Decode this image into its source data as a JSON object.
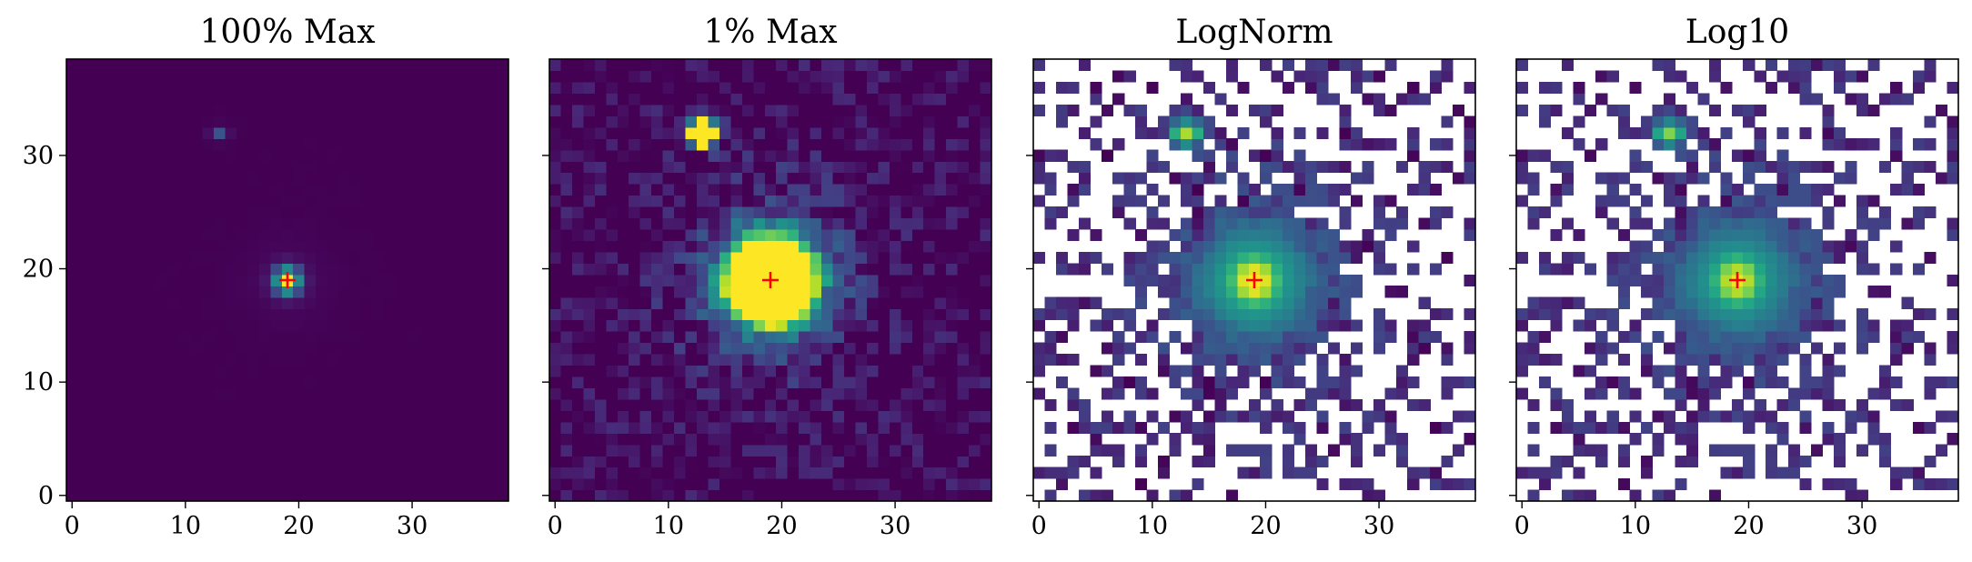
{
  "chart_data": [
    {
      "type": "heatmap",
      "title": "100% Max",
      "norm": "linear-full",
      "cmap": "viridis",
      "x": [
        0,
        10,
        20,
        30
      ],
      "y": [
        0,
        10,
        20,
        30
      ],
      "grid_size": 39,
      "marker": {
        "x": 19,
        "y": 19,
        "symbol": "+",
        "color": "#ff0000"
      },
      "peak": {
        "x": 19,
        "y": 19
      },
      "secondary_source": {
        "x": 13,
        "y": 32
      },
      "background_nan": false,
      "shared_y": false
    },
    {
      "type": "heatmap",
      "title": "1% Max",
      "norm": "linear-clipped-1pct",
      "cmap": "viridis",
      "x": [
        0,
        10,
        20,
        30
      ],
      "y": [
        0,
        10,
        20,
        30
      ],
      "grid_size": 39,
      "marker": {
        "x": 19,
        "y": 19,
        "symbol": "+",
        "color": "#ff0000"
      },
      "peak": {
        "x": 19,
        "y": 19
      },
      "secondary_source": {
        "x": 13,
        "y": 32
      },
      "background_nan": false,
      "shared_y": true
    },
    {
      "type": "heatmap",
      "title": "LogNorm",
      "norm": "log",
      "cmap": "viridis",
      "x": [
        0,
        10,
        20,
        30
      ],
      "y": [
        0,
        10,
        20,
        30
      ],
      "grid_size": 39,
      "marker": {
        "x": 19,
        "y": 19,
        "symbol": "+",
        "color": "#ff0000"
      },
      "peak": {
        "x": 19,
        "y": 19
      },
      "secondary_source": {
        "x": 13,
        "y": 32
      },
      "background_nan": true,
      "shared_y": true
    },
    {
      "type": "heatmap",
      "title": "Log10",
      "norm": "log10",
      "cmap": "viridis",
      "x": [
        0,
        10,
        20,
        30
      ],
      "y": [
        0,
        10,
        20,
        30
      ],
      "grid_size": 39,
      "marker": {
        "x": 19,
        "y": 19,
        "symbol": "+",
        "color": "#ff0000"
      },
      "peak": {
        "x": 19,
        "y": 19
      },
      "secondary_source": {
        "x": 13,
        "y": 32
      },
      "background_nan": true,
      "shared_y": true
    }
  ]
}
